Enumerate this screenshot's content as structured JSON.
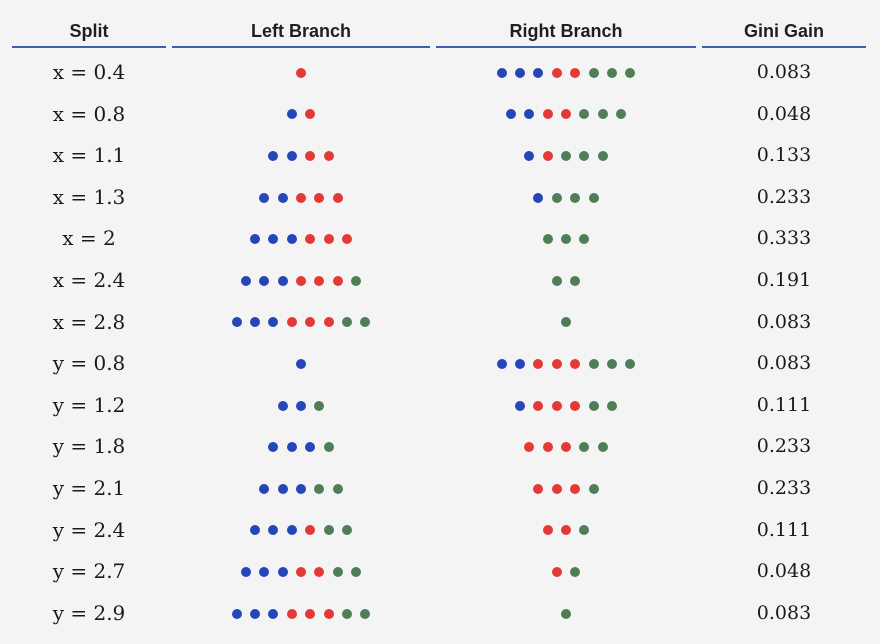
{
  "header": {
    "split": "Split",
    "left": "Left Branch",
    "right": "Right Branch",
    "gain": "Gini Gain"
  },
  "colors": {
    "blue": "#2546b8",
    "red": "#e53935",
    "green": "#4e7e56",
    "rule": "#3d5fb0"
  },
  "rows": [
    {
      "split": "x = 0.4",
      "left": "r",
      "right": "bbbrrggg",
      "gain": "0.083"
    },
    {
      "split": "x = 0.8",
      "left": "br",
      "right": "bbrrggg",
      "gain": "0.048"
    },
    {
      "split": "x = 1.1",
      "left": "bbrr",
      "right": "brggg",
      "gain": "0.133"
    },
    {
      "split": "x = 1.3",
      "left": "bbrrr",
      "right": "bggg",
      "gain": "0.233"
    },
    {
      "split": "x = 2",
      "left": "bbbrrr",
      "right": "ggg",
      "gain": "0.333"
    },
    {
      "split": "x = 2.4",
      "left": "bbbrrrg",
      "right": "gg",
      "gain": "0.191"
    },
    {
      "split": "x = 2.8",
      "left": "bbbrrrgg",
      "right": "g",
      "gain": "0.083"
    },
    {
      "split": "y = 0.8",
      "left": "b",
      "right": "bbrrrggg",
      "gain": "0.083"
    },
    {
      "split": "y = 1.2",
      "left": "bbg",
      "right": "brrrgg",
      "gain": "0.111"
    },
    {
      "split": "y = 1.8",
      "left": "bbbg",
      "right": "rrrgg",
      "gain": "0.233"
    },
    {
      "split": "y = 2.1",
      "left": "bbbgg",
      "right": "rrrg",
      "gain": "0.233"
    },
    {
      "split": "y = 2.4",
      "left": "bbbrgg",
      "right": "rrg",
      "gain": "0.111"
    },
    {
      "split": "y = 2.7",
      "left": "bbbrrgg",
      "right": "rg",
      "gain": "0.048"
    },
    {
      "split": "y = 2.9",
      "left": "bbbrrrgg",
      "right": "g",
      "gain": "0.083"
    }
  ]
}
